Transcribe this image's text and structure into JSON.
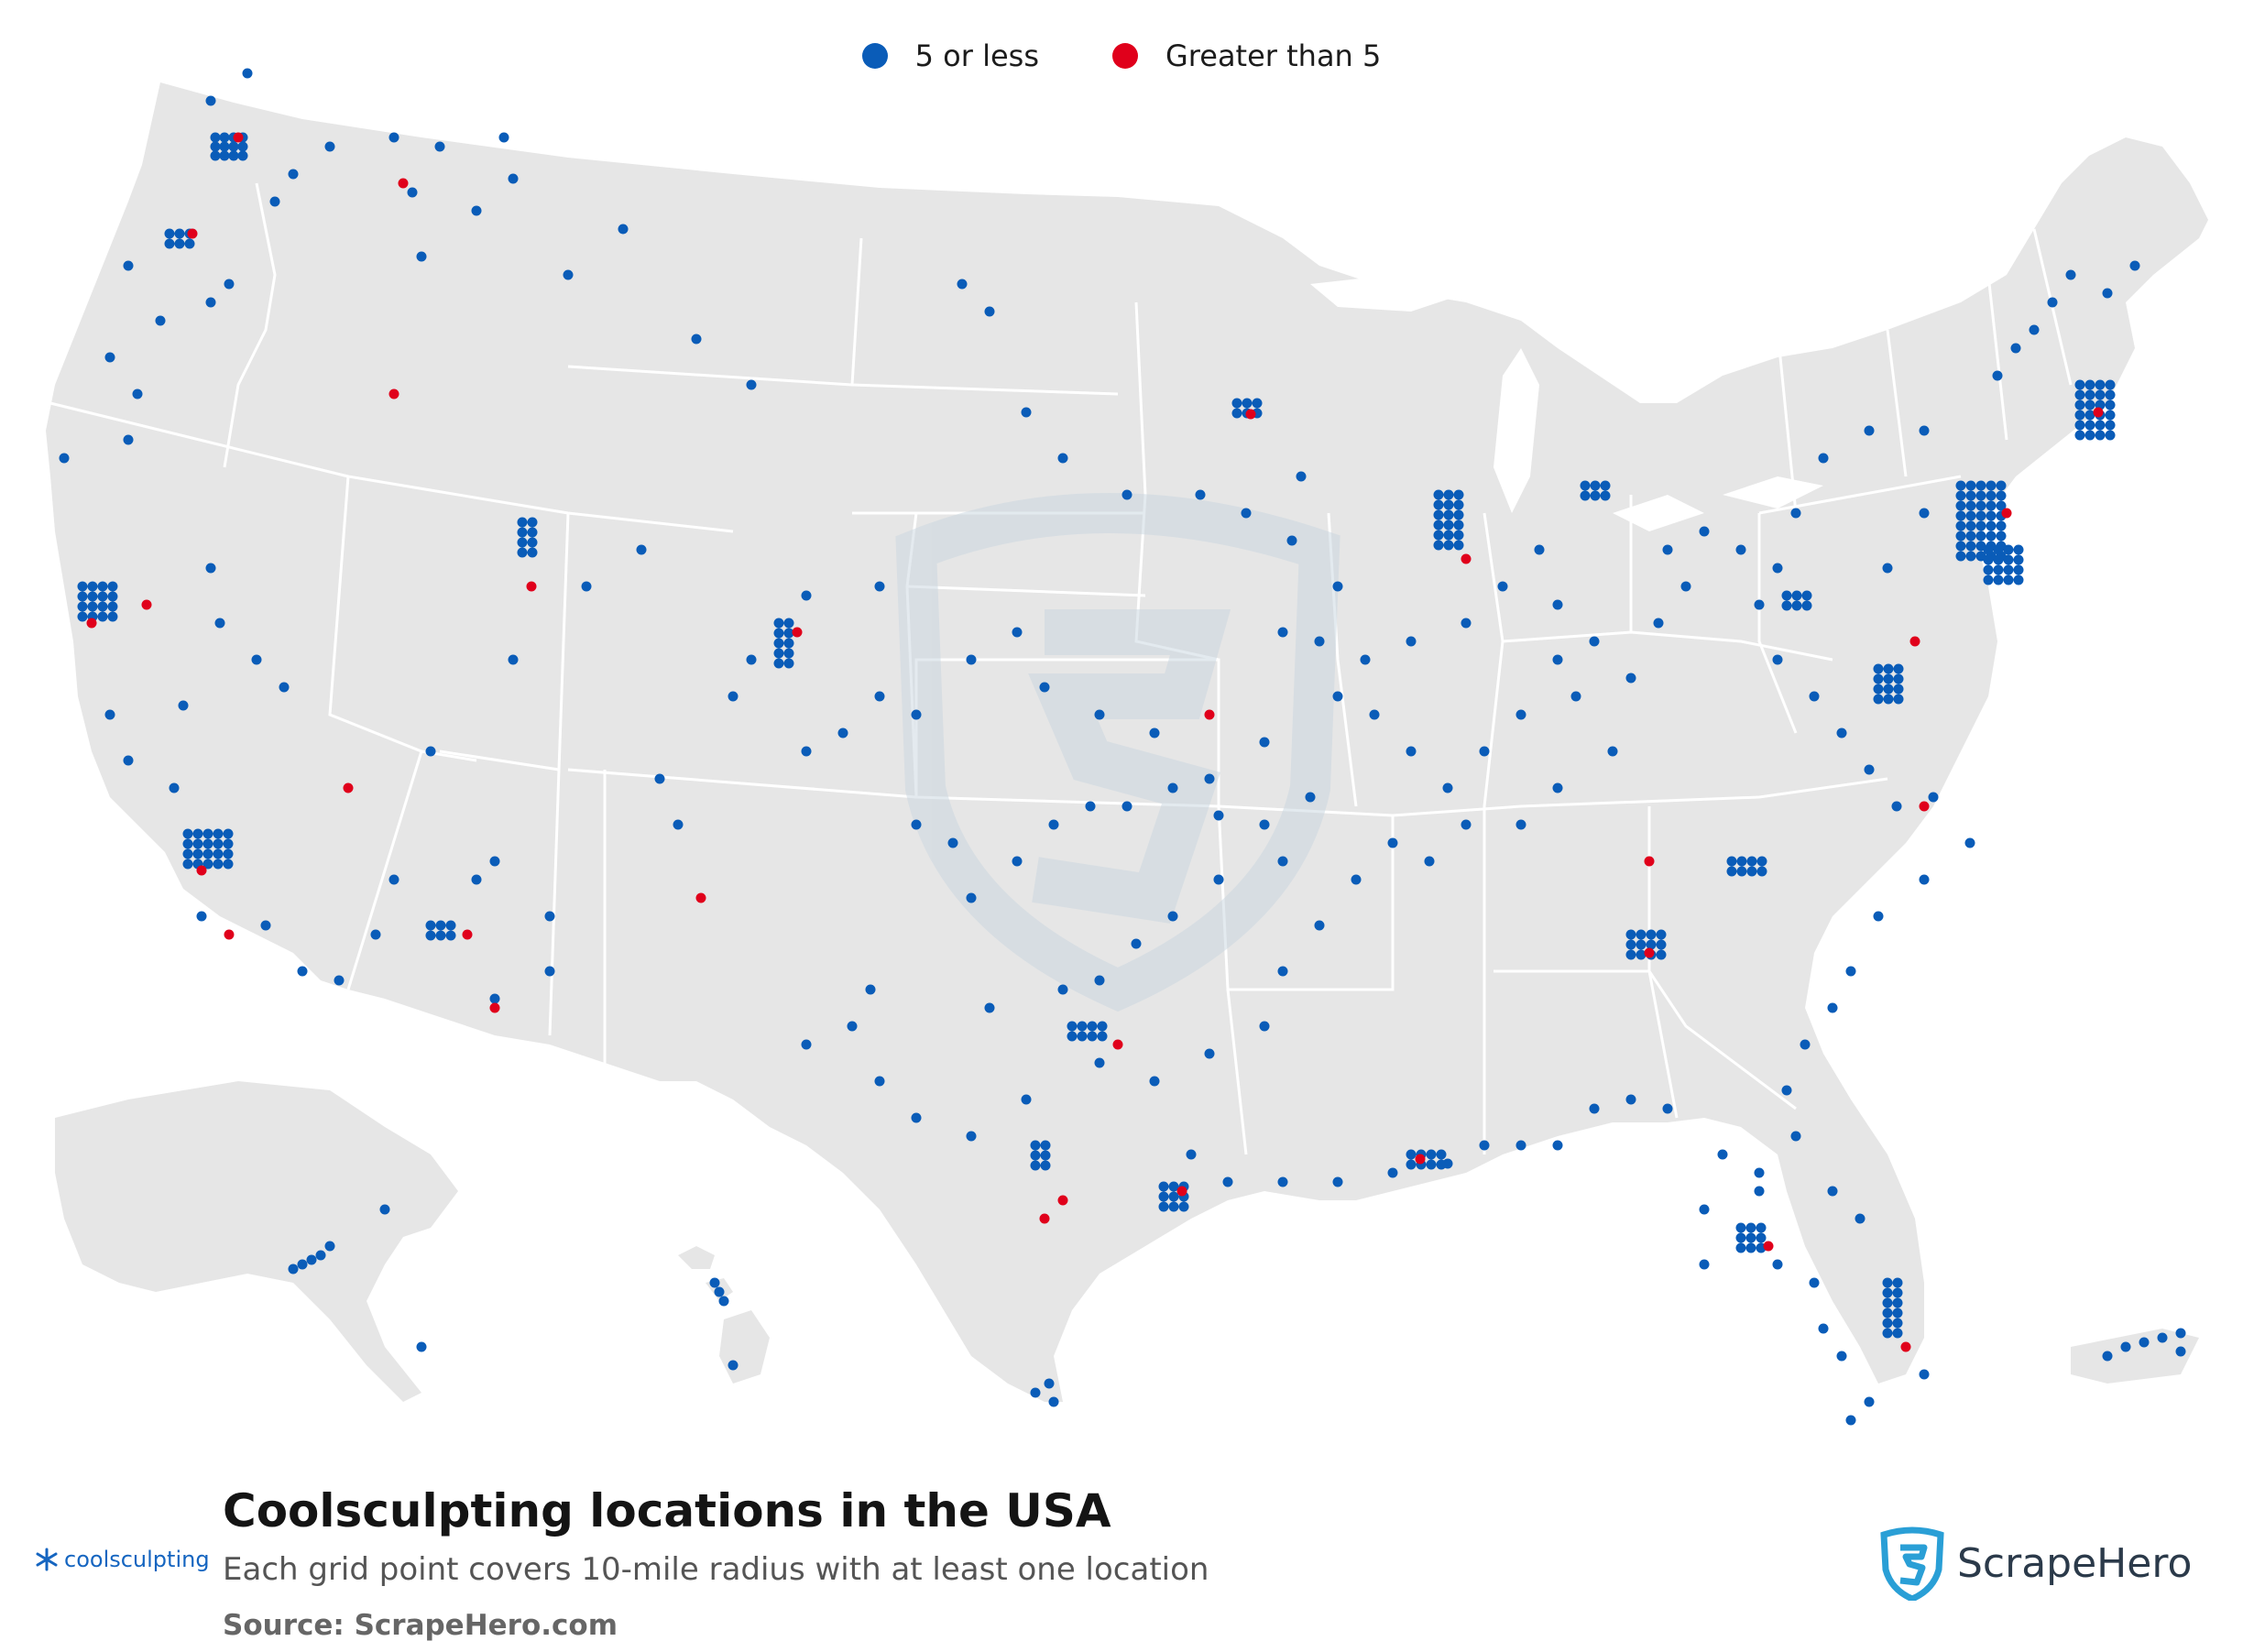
{
  "legend": {
    "low_label": "5 or less",
    "high_label": "Greater than 5",
    "low_color": "#0a5cb8",
    "high_color": "#e0001b"
  },
  "footer": {
    "title": "Coolsculpting locations in the USA",
    "subtitle": "Each grid point covers 10-mile radius with at least one location",
    "source": "Source: ScrapeHero.com"
  },
  "brand_left": {
    "name": "coolsculpting",
    "icon": "snowflake-icon"
  },
  "brand_right": {
    "name": "ScrapeHero",
    "icon": "shield-s-icon"
  },
  "colors": {
    "land": "#e6e6e6",
    "borders": "#ffffff",
    "watermark": "#d6dfe6"
  },
  "map_data": {
    "type": "dot-map",
    "region": "USA",
    "markers": {
      "greater_than_5": [
        {
          "place": "Seattle, WA"
        },
        {
          "place": "Portland, OR"
        },
        {
          "place": "Spokane, WA"
        },
        {
          "place": "Boise, ID"
        },
        {
          "place": "San Francisco, CA"
        },
        {
          "place": "Sacramento, CA"
        },
        {
          "place": "Los Angeles, CA"
        },
        {
          "place": "San Diego, CA"
        },
        {
          "place": "Las Vegas, NV"
        },
        {
          "place": "Phoenix, AZ"
        },
        {
          "place": "Tucson, AZ"
        },
        {
          "place": "Salt Lake City, UT"
        },
        {
          "place": "Denver, CO"
        },
        {
          "place": "Albuquerque, NM"
        },
        {
          "place": "Minneapolis, MN"
        },
        {
          "place": "Chicago, IL"
        },
        {
          "place": "Kansas City, MO"
        },
        {
          "place": "Dallas, TX"
        },
        {
          "place": "Houston, TX"
        },
        {
          "place": "Austin, TX"
        },
        {
          "place": "San Antonio, TX"
        },
        {
          "place": "New Orleans, LA"
        },
        {
          "place": "Atlanta, GA"
        },
        {
          "place": "Nashville, TN"
        },
        {
          "place": "Charlotte, NC"
        },
        {
          "place": "Miami, FL"
        },
        {
          "place": "Tampa, FL"
        },
        {
          "place": "Washington, DC"
        },
        {
          "place": "New York, NY"
        },
        {
          "place": "Boston, MA"
        }
      ]
    }
  }
}
